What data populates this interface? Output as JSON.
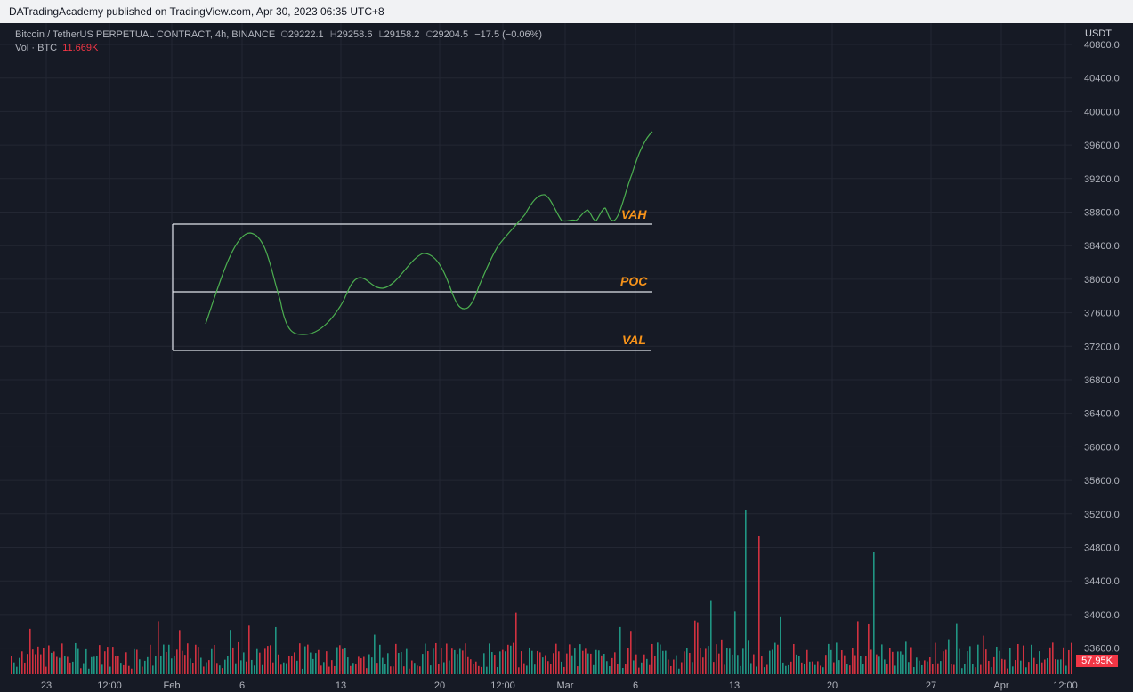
{
  "header": {
    "publish_text": "DATradingAcademy published on TradingView.com, Apr 30, 2023 06:35 UTC+8"
  },
  "legend": {
    "symbol": "Bitcoin / TetherUS PERPETUAL CONTRACT, 4h, BINANCE",
    "o_label": "O",
    "o_value": "29222.1",
    "h_label": "H",
    "h_value": "29258.6",
    "l_label": "L",
    "l_value": "29158.2",
    "c_label": "C",
    "c_value": "29204.5",
    "change": "−17.5 (−0.06%)",
    "vol_label": "Vol · BTC",
    "vol_value": "11.669K"
  },
  "price_axis": {
    "currency": "USDT",
    "ticks": [
      "40800.0",
      "40400.0",
      "40000.0",
      "39600.0",
      "39200.0",
      "38800.0",
      "38400.0",
      "38000.0",
      "37600.0",
      "37200.0",
      "36800.0",
      "36400.0",
      "36000.0",
      "35600.0",
      "35200.0",
      "34800.0",
      "34400.0",
      "34000.0",
      "33600.0"
    ]
  },
  "time_axis": {
    "ticks": [
      "23",
      "12:00",
      "Feb",
      "6",
      "13",
      "20",
      "12:00",
      "Mar",
      "6",
      "13",
      "20",
      "27",
      "Apr",
      "12:00"
    ]
  },
  "volume_badge": "57.95K",
  "zones": {
    "vah": "VAH",
    "poc": "POC",
    "val": "VAL"
  },
  "colors": {
    "background": "#161a25",
    "grid": "#232733",
    "up": "#22ab94",
    "down": "#f23645",
    "curve": "#4caf50",
    "zone_label": "#f7931a"
  }
}
